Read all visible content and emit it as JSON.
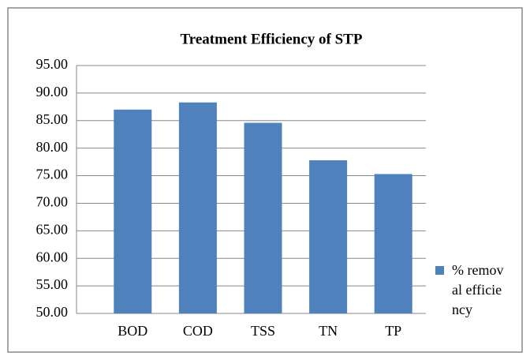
{
  "chart_data": {
    "type": "bar",
    "title": "Treatment Efficiency of STP",
    "categories": [
      "BOD",
      "COD",
      "TSS",
      "TN",
      "TP"
    ],
    "series": [
      {
        "name": "% removal efficiency",
        "color": "#4f81bd",
        "values": [
          87.0,
          88.3,
          84.6,
          77.8,
          75.3
        ]
      }
    ],
    "ylim": [
      50,
      95
    ],
    "yticks": [
      {
        "value": 50,
        "label": "50.00"
      },
      {
        "value": 55,
        "label": "55.00"
      },
      {
        "value": 60,
        "label": "60.00"
      },
      {
        "value": 65,
        "label": "65.00"
      },
      {
        "value": 70,
        "label": "70.00"
      },
      {
        "value": 75,
        "label": "75.00"
      },
      {
        "value": 80,
        "label": "80.00"
      },
      {
        "value": 85,
        "label": "85.00"
      },
      {
        "value": 90,
        "label": "90.00"
      },
      {
        "value": 95,
        "label": "95.00"
      }
    ],
    "grid": true,
    "legend": "right"
  }
}
